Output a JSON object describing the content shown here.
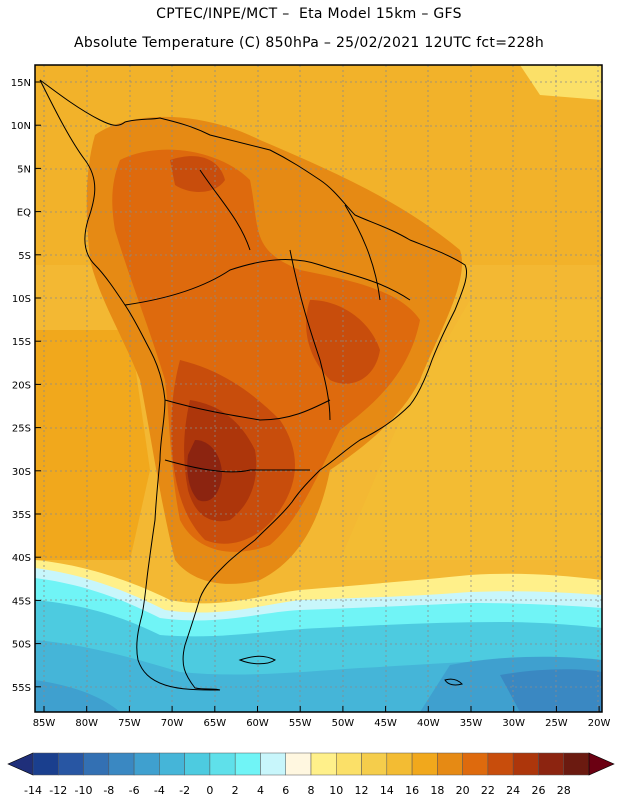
{
  "header": {
    "line1": "CPTEC/INPE/MCT –  Eta Model 15km – GFS",
    "line2": "Absolute Temperature (C) 850hPa – 25/02/2021 12UTC fct=228h"
  },
  "map": {
    "lat_labels": [
      "15N",
      "10N",
      "5N",
      "EQ",
      "5S",
      "10S",
      "15S",
      "20S",
      "25S",
      "30S",
      "35S",
      "40S",
      "45S",
      "50S",
      "55S"
    ],
    "lon_labels": [
      "85W",
      "80W",
      "75W",
      "70W",
      "65W",
      "60W",
      "55W",
      "50W",
      "45W",
      "40W",
      "35W",
      "30W",
      "25W",
      "20W"
    ]
  },
  "colorbar": {
    "labels": [
      "-14",
      "-12",
      "-10",
      "-8",
      "-6",
      "-4",
      "-2",
      "0",
      "2",
      "4",
      "6",
      "8",
      "10",
      "12",
      "14",
      "16",
      "18",
      "20",
      "22",
      "24",
      "26",
      "28"
    ],
    "colors": [
      "#1a3f8e",
      "#2856a3",
      "#3370b3",
      "#3a88c2",
      "#3fa0cf",
      "#45b5d8",
      "#4dcbe0",
      "#5fe0ea",
      "#70f4f6",
      "#c8f6fb",
      "#fff7e0",
      "#fff08a",
      "#fbe068",
      "#f5cd4b",
      "#f3bc33",
      "#f1a81c",
      "#e68a14",
      "#de6a0d",
      "#c84d0c",
      "#ad360b",
      "#8c2410",
      "#6b1a10"
    ],
    "left_arrow_color": "#1f2f7a",
    "right_arrow_color": "#6b0012"
  }
}
